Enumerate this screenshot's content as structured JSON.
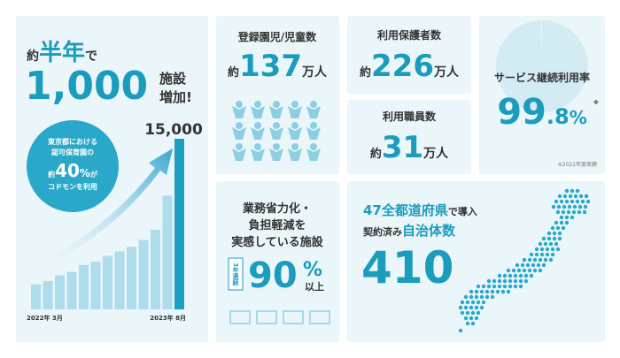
{
  "facilities": {
    "prefix": "約",
    "period": "半年",
    "particle": "で",
    "count": "1,000",
    "unit": "施設",
    "increase": "増加!",
    "badge": {
      "line1": "東京都における",
      "line2": "認可保育園の",
      "prefix": "約",
      "value": "40",
      "percent": "%",
      "suffix": "が",
      "line4": "コドモンを利用"
    },
    "chart": {
      "type": "bar",
      "values": [
        2200,
        2500,
        3000,
        3300,
        3900,
        4200,
        4700,
        5100,
        5500,
        6100,
        7000,
        10000,
        15000
      ],
      "peak_label": "15,000",
      "start_label": "2022年 3月",
      "end_label": "2023年 8月"
    }
  },
  "children": {
    "title": "登録園児/児童数",
    "prefix": "約",
    "value": "137",
    "unit": "万人"
  },
  "guardians": {
    "title": "利用保護者数",
    "prefix": "約",
    "value": "226",
    "unit": "万人"
  },
  "staff": {
    "title": "利用職員数",
    "prefix": "約",
    "value": "31",
    "unit": "万人"
  },
  "retention": {
    "title": "サービス継続利用率",
    "int": "99",
    "dec": ".8",
    "percent": "%",
    "mark": "※",
    "rate": 99.8,
    "note": "※2021年度実績"
  },
  "efficiency": {
    "line1": "業務省力化・",
    "line2": "負担軽減を",
    "line3": "実感している施設",
    "badge": "3年連続",
    "value": "90",
    "percent": "%",
    "suffix": "以上"
  },
  "municipalities": {
    "count": "47",
    "scope": "全都道府県",
    "verb": "で導入",
    "label1": "契約済み",
    "label2": "自治体数",
    "value": "410"
  }
}
